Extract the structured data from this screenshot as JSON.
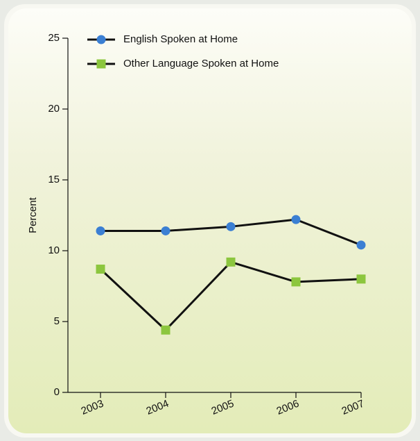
{
  "chart_data": {
    "type": "line",
    "y_label": "Percent",
    "categories": [
      "2003",
      "2004",
      "2005",
      "2006",
      "2007"
    ],
    "series": [
      {
        "name": "English Spoken at Home",
        "color": "#3b7fd3",
        "marker": "circle",
        "values": [
          11.4,
          11.4,
          11.7,
          12.2,
          10.4
        ]
      },
      {
        "name": "Other Language Spoken at Home",
        "color": "#8cc63e",
        "marker": "square",
        "values": [
          8.7,
          4.4,
          9.2,
          7.8,
          8.0
        ]
      }
    ],
    "ylim": [
      0,
      25
    ],
    "yticks": [
      0,
      5,
      10,
      15,
      20,
      25
    ],
    "legend": "upper left"
  }
}
